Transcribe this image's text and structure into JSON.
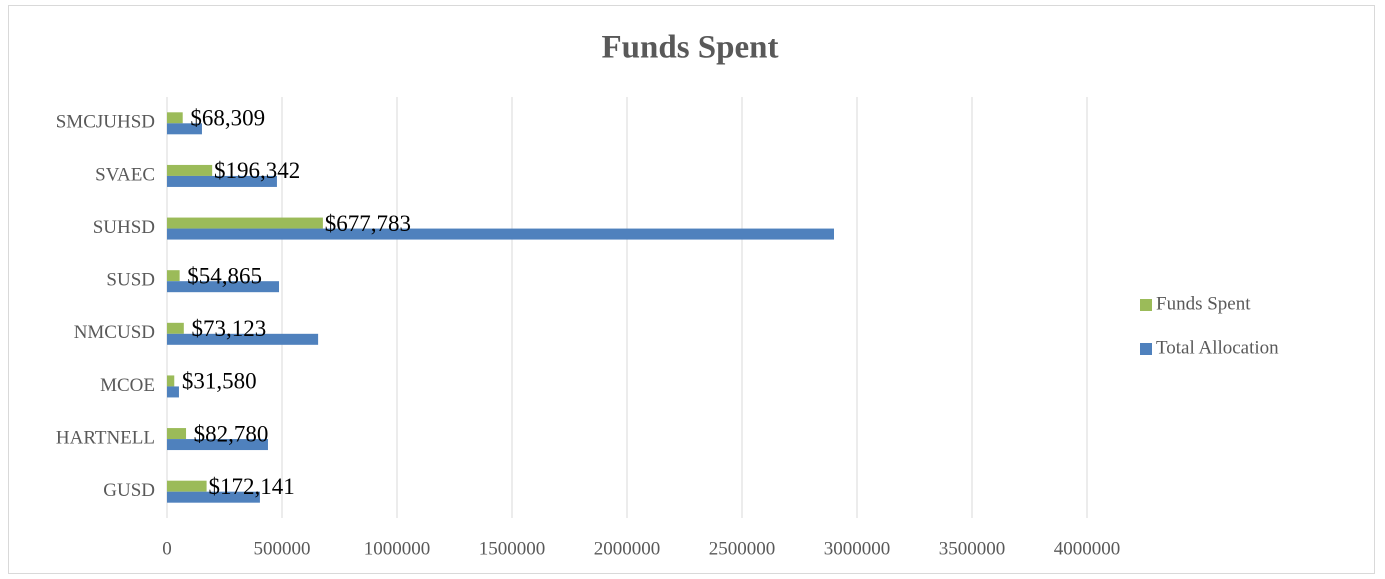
{
  "chart_data": {
    "type": "hbar",
    "title": "Funds Spent",
    "categories": [
      "GUSD",
      "HARTNELL",
      "MCOE",
      "NMCUSD",
      "SUSD",
      "SUHSD",
      "SVAEC",
      "SMCJUHSD"
    ],
    "series": [
      {
        "name": "Funds Spent",
        "color": "#9bbb59",
        "values": [
          172141,
          82780,
          31580,
          73123,
          54865,
          677783,
          196342,
          68309
        ],
        "value_labels": [
          "$172,141",
          "$82,780",
          "$31,580",
          "$73,123",
          "$54,865",
          "$677,783",
          "$196,342",
          "$68,309"
        ]
      },
      {
        "name": "Total Allocation",
        "color": "#4f81bd",
        "values": [
          404000,
          439000,
          52000,
          657000,
          487000,
          2900000,
          478000,
          152000
        ]
      }
    ],
    "xlim": [
      0,
      4000000
    ],
    "xticks": [
      0,
      500000,
      1000000,
      1500000,
      2000000,
      2500000,
      3000000,
      3500000,
      4000000
    ],
    "grid": true,
    "legend": "right"
  }
}
